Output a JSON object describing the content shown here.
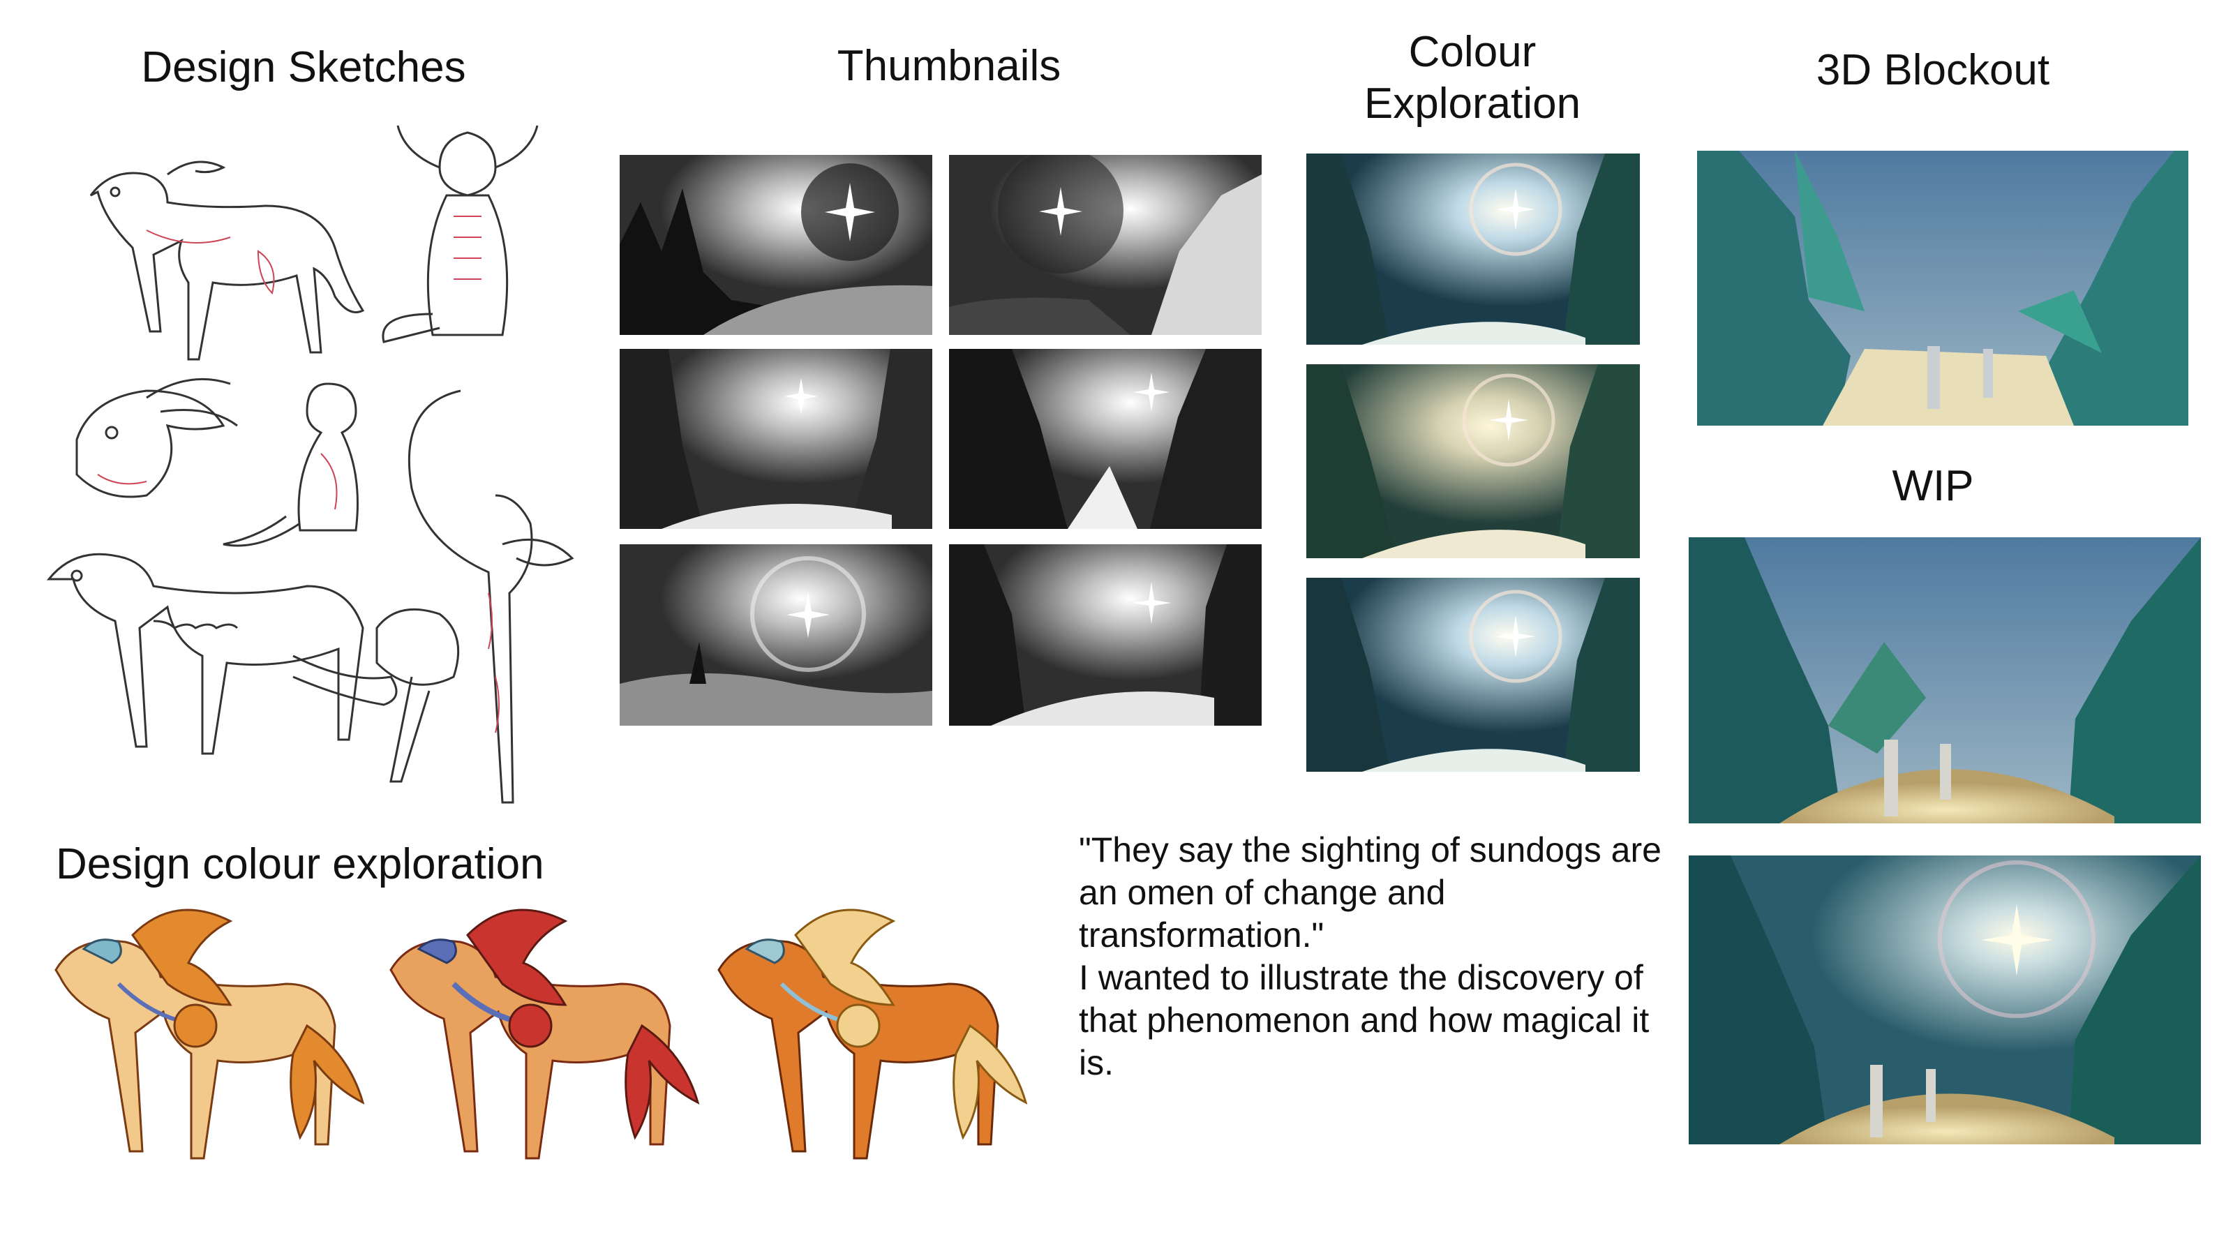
{
  "headings": {
    "design_sketches": "Design Sketches",
    "thumbnails": "Thumbnails",
    "colour_exploration_line1": "Colour",
    "colour_exploration_line2": "Exploration",
    "blockout_3d": "3D Blockout",
    "wip": "WIP",
    "design_colour_exploration": "Design colour exploration"
  },
  "quote": {
    "line1": "\"They say the sighting of sundogs are an omen of change and transformation.\"",
    "line2": "I wanted to illustrate the discovery of that phenomenon and how magical it is."
  },
  "colors": {
    "thumb_dark": "#2b2b2b",
    "thumb_light": "#e0e0e0",
    "teal_dark": "#1c4a55",
    "teal_mid": "#2f8a86",
    "teal_light": "#4fb0a6",
    "sky": "#5e86a8",
    "sand": "#e8dcb5",
    "creature_light": "#f2c98a",
    "creature_orange": "#e38a2e",
    "creature_red": "#c9342e",
    "creature_blue": "#5b6fb7"
  }
}
